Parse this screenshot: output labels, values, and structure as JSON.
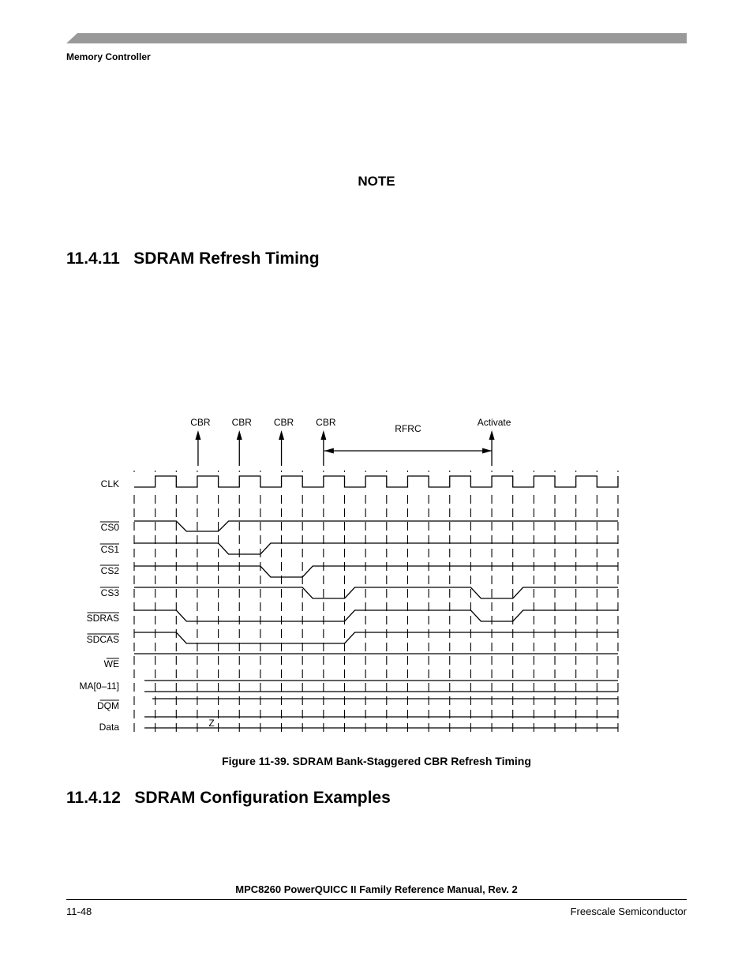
{
  "header": {
    "running_head": "Memory Controller",
    "bar_color": "#999999"
  },
  "note": {
    "title": "NOTE"
  },
  "sections": [
    {
      "number": "11.4.11",
      "title": "SDRAM Refresh Timing"
    },
    {
      "number": "11.4.12",
      "title": "SDRAM Configuration Examples"
    }
  ],
  "figure": {
    "caption": "Figure 11-39. SDRAM Bank-Staggered CBR Refresh Timing",
    "edge_count": 24,
    "annotations": [
      {
        "label": "CBR",
        "edge": 4
      },
      {
        "label": "CBR",
        "edge": 6
      },
      {
        "label": "CBR",
        "edge": 8
      },
      {
        "label": "CBR",
        "edge": 10
      },
      {
        "label": "Activate",
        "edge": 18
      }
    ],
    "interval": {
      "label": "RFRC",
      "from_edge": 10,
      "to_edge": 18
    },
    "signals": [
      {
        "name": "CLK",
        "type": "clock",
        "overbar": false
      },
      {
        "name": "CS0",
        "type": "level",
        "overbar": true,
        "falls": [
          3
        ],
        "rises": [
          5
        ]
      },
      {
        "name": "CS1",
        "type": "level",
        "overbar": true,
        "falls": [
          5
        ],
        "rises": [
          7
        ]
      },
      {
        "name": "CS2",
        "type": "level",
        "overbar": true,
        "falls": [
          7
        ],
        "rises": [
          9
        ]
      },
      {
        "name": "CS3",
        "type": "level",
        "overbar": true,
        "falls": [
          9,
          17
        ],
        "rises": [
          11,
          19
        ]
      },
      {
        "name": "SDRAS",
        "type": "level",
        "overbar": true,
        "falls": [
          3,
          17
        ],
        "rises": [
          11,
          19
        ]
      },
      {
        "name": "SDCAS",
        "type": "level",
        "overbar": true,
        "falls": [
          3
        ],
        "rises": [
          11
        ]
      },
      {
        "name": "WE",
        "type": "level",
        "overbar": true,
        "falls": [],
        "rises": []
      },
      {
        "name": "MA[0–11]",
        "type": "bus",
        "overbar": false
      },
      {
        "name": "DQM",
        "type": "level",
        "overbar": true,
        "falls": [],
        "rises": []
      },
      {
        "name": "Data",
        "type": "bus",
        "overbar": false,
        "bus_label": "Z"
      }
    ]
  },
  "footer": {
    "title": "MPC8260 PowerQUICC II Family Reference Manual, Rev. 2",
    "page": "11-48",
    "company": "Freescale Semiconductor"
  }
}
